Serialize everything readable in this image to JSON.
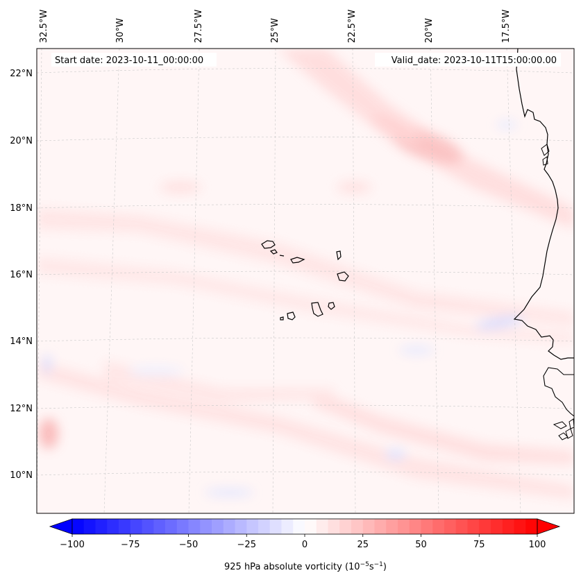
{
  "header": {
    "start_date": "Start date: 2023-10-11_00:00:00",
    "valid_date": "Valid_date: 2023-10-11T15:00:00.00"
  },
  "map": {
    "lon_labels": [
      "32.5°W",
      "30°W",
      "27.5°W",
      "25°W",
      "22.5°W",
      "20°W",
      "17.5°W"
    ],
    "lat_labels": [
      "22°N",
      "20°N",
      "18°N",
      "16°N",
      "14°N",
      "12°N",
      "10°N"
    ]
  },
  "colorbar": {
    "ticks": [
      "−100",
      "−75",
      "−50",
      "−25",
      "0",
      "25",
      "50",
      "75",
      "100"
    ],
    "title_prefix": "925 hPa absolute vorticity (10",
    "title_exp1": "−5",
    "title_mid": "s",
    "title_exp2": "−1",
    "title_suffix": ")",
    "min": -100,
    "max": 100,
    "step": 5
  },
  "colors": {
    "min_color": "#0000ff",
    "max_color": "#ff0000",
    "mid_color": "#ffffff",
    "coast": "#000000"
  }
}
